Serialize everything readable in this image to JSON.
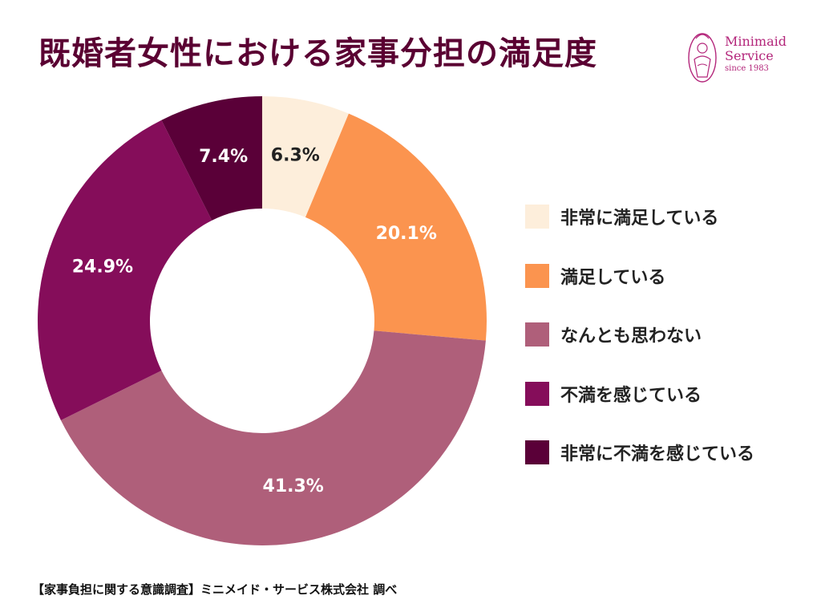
{
  "title": "既婚者女性における家事分担の満足度",
  "logo": {
    "line1": "Minimaid",
    "line2": "Service",
    "line3": "since 1983",
    "color": "#b3257a"
  },
  "chart_data": {
    "type": "pie",
    "donut": true,
    "start_angle_deg": 0,
    "direction": "clockwise",
    "categories": [
      "非常に満足している",
      "満足している",
      "なんとも思わない",
      "不満を感じている",
      "非常に不満を感じている"
    ],
    "values": [
      6.3,
      20.1,
      41.3,
      24.9,
      7.4
    ],
    "labels": [
      "6.3%",
      "20.1%",
      "41.3%",
      "24.9%",
      "7.4%"
    ],
    "colors": [
      "#fdeedb",
      "#fb944f",
      "#af5f7a",
      "#850d5a",
      "#5a0038"
    ],
    "label_colors": [
      "#222222",
      "#ffffff",
      "#ffffff",
      "#ffffff",
      "#ffffff"
    ],
    "legend_position": "right"
  },
  "footer": "【家事負担に関する意識調査】ミニメイド・サービス株式会社 調べ"
}
